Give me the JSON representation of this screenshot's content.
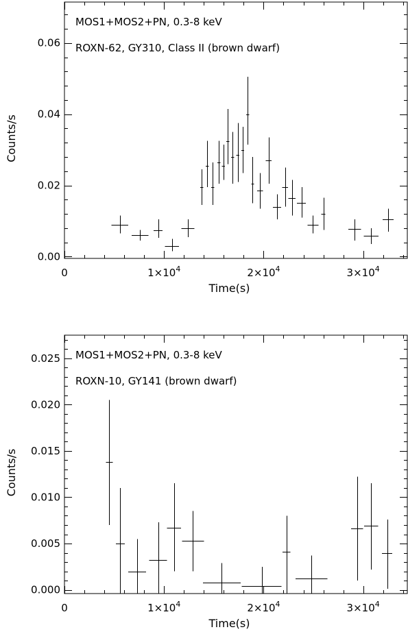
{
  "chart_data": [
    {
      "type": "scatter",
      "annotations": [
        "MOS1+MOS2+PN, 0.3-8 keV",
        "ROXN-62, GY310, Class II (brown dwarf)"
      ],
      "xlabel": "Time(s)",
      "ylabel": "Counts/s",
      "xlim": [
        0,
        34500
      ],
      "ylim": [
        -0.0005,
        0.0715
      ],
      "xticks": [
        {
          "value": 0,
          "mant": "0",
          "exp": ""
        },
        {
          "value": 10000,
          "mant": "1×10",
          "exp": "4"
        },
        {
          "value": 20000,
          "mant": "2×10",
          "exp": "4"
        },
        {
          "value": 30000,
          "mant": "3×10",
          "exp": "4"
        }
      ],
      "yticks": [
        {
          "value": 0.0,
          "label": "0.00"
        },
        {
          "value": 0.02,
          "label": "0.02"
        },
        {
          "value": 0.04,
          "label": "0.04"
        },
        {
          "value": 0.06,
          "label": "0.06"
        }
      ],
      "points": [
        {
          "x": 5550,
          "xerr": 850,
          "y": 0.009,
          "ylo": 0.0065,
          "yhi": 0.0115
        },
        {
          "x": 7600,
          "xerr": 850,
          "y": 0.006,
          "ylo": 0.0045,
          "yhi": 0.0075
        },
        {
          "x": 9400,
          "xerr": 450,
          "y": 0.0073,
          "ylo": 0.0053,
          "yhi": 0.0105
        },
        {
          "x": 10800,
          "xerr": 700,
          "y": 0.003,
          "ylo": 0.0015,
          "yhi": 0.005
        },
        {
          "x": 12400,
          "xerr": 650,
          "y": 0.008,
          "ylo": 0.0055,
          "yhi": 0.0105
        },
        {
          "x": 13800,
          "xerr": 150,
          "y": 0.0195,
          "ylo": 0.0145,
          "yhi": 0.0245
        },
        {
          "x": 14350,
          "xerr": 150,
          "y": 0.0255,
          "ylo": 0.0195,
          "yhi": 0.0325
        },
        {
          "x": 14900,
          "xerr": 150,
          "y": 0.0195,
          "ylo": 0.0145,
          "yhi": 0.0265
        },
        {
          "x": 15500,
          "xerr": 150,
          "y": 0.0265,
          "ylo": 0.0205,
          "yhi": 0.0325
        },
        {
          "x": 15950,
          "xerr": 150,
          "y": 0.0255,
          "ylo": 0.0215,
          "yhi": 0.0315
        },
        {
          "x": 16400,
          "xerr": 150,
          "y": 0.0325,
          "ylo": 0.026,
          "yhi": 0.0415
        },
        {
          "x": 16900,
          "xerr": 150,
          "y": 0.028,
          "ylo": 0.0205,
          "yhi": 0.035
        },
        {
          "x": 17400,
          "xerr": 150,
          "y": 0.0285,
          "ylo": 0.021,
          "yhi": 0.0375
        },
        {
          "x": 17900,
          "xerr": 150,
          "y": 0.03,
          "ylo": 0.0235,
          "yhi": 0.0365
        },
        {
          "x": 18400,
          "xerr": 150,
          "y": 0.04,
          "ylo": 0.0315,
          "yhi": 0.0505
        },
        {
          "x": 18900,
          "xerr": 150,
          "y": 0.0205,
          "ylo": 0.015,
          "yhi": 0.028
        },
        {
          "x": 19650,
          "xerr": 300,
          "y": 0.0185,
          "ylo": 0.0135,
          "yhi": 0.0235
        },
        {
          "x": 20500,
          "xerr": 300,
          "y": 0.027,
          "ylo": 0.0205,
          "yhi": 0.0335
        },
        {
          "x": 21350,
          "xerr": 400,
          "y": 0.014,
          "ylo": 0.0105,
          "yhi": 0.0175
        },
        {
          "x": 22150,
          "xerr": 300,
          "y": 0.0195,
          "ylo": 0.014,
          "yhi": 0.025
        },
        {
          "x": 22850,
          "xerr": 350,
          "y": 0.0165,
          "ylo": 0.0115,
          "yhi": 0.0215
        },
        {
          "x": 23800,
          "xerr": 450,
          "y": 0.015,
          "ylo": 0.011,
          "yhi": 0.0195
        },
        {
          "x": 24950,
          "xerr": 550,
          "y": 0.009,
          "ylo": 0.0065,
          "yhi": 0.0115
        },
        {
          "x": 26000,
          "xerr": 200,
          "y": 0.012,
          "ylo": 0.0075,
          "yhi": 0.0165
        },
        {
          "x": 29150,
          "xerr": 650,
          "y": 0.0078,
          "ylo": 0.0045,
          "yhi": 0.0105
        },
        {
          "x": 30800,
          "xerr": 750,
          "y": 0.0058,
          "ylo": 0.0035,
          "yhi": 0.008
        },
        {
          "x": 32500,
          "xerr": 550,
          "y": 0.0105,
          "ylo": 0.007,
          "yhi": 0.0135
        }
      ]
    },
    {
      "type": "scatter",
      "annotations": [
        "MOS1+MOS2+PN, 0.3-8 keV",
        "ROXN-10, GY141 (brown dwarf)"
      ],
      "xlabel": "Time(s)",
      "ylabel": "Counts/s",
      "xlim": [
        0,
        34500
      ],
      "ylim": [
        -0.0004,
        0.0275
      ],
      "xticks": [
        {
          "value": 0,
          "mant": "0",
          "exp": ""
        },
        {
          "value": 10000,
          "mant": "1×10",
          "exp": "4"
        },
        {
          "value": 20000,
          "mant": "2×10",
          "exp": "4"
        },
        {
          "value": 30000,
          "mant": "3×10",
          "exp": "4"
        }
      ],
      "yticks": [
        {
          "value": 0.0,
          "label": "0.000"
        },
        {
          "value": 0.005,
          "label": "0.005"
        },
        {
          "value": 0.01,
          "label": "0.010"
        },
        {
          "value": 0.015,
          "label": "0.015"
        },
        {
          "value": 0.02,
          "label": "0.020"
        },
        {
          "value": 0.025,
          "label": "0.025"
        }
      ],
      "points": [
        {
          "x": 4500,
          "xerr": 350,
          "y": 0.0138,
          "ylo": 0.007,
          "yhi": 0.0205
        },
        {
          "x": 5600,
          "xerr": 450,
          "y": 0.005,
          "ylo": -0.0004,
          "yhi": 0.011
        },
        {
          "x": 7300,
          "xerr": 900,
          "y": 0.002,
          "ylo": -0.0004,
          "yhi": 0.0055
        },
        {
          "x": 9400,
          "xerr": 900,
          "y": 0.0032,
          "ylo": -0.0004,
          "yhi": 0.0073
        },
        {
          "x": 11000,
          "xerr": 700,
          "y": 0.0067,
          "ylo": 0.002,
          "yhi": 0.0115
        },
        {
          "x": 12900,
          "xerr": 1100,
          "y": 0.0053,
          "ylo": 0.002,
          "yhi": 0.0085
        },
        {
          "x": 15800,
          "xerr": 1900,
          "y": 0.0008,
          "ylo": -0.0004,
          "yhi": 0.0029
        },
        {
          "x": 19800,
          "xerr": 2000,
          "y": 0.0004,
          "ylo": -0.0004,
          "yhi": 0.0025
        },
        {
          "x": 22300,
          "xerr": 400,
          "y": 0.0041,
          "ylo": -0.0004,
          "yhi": 0.008
        },
        {
          "x": 24800,
          "xerr": 1600,
          "y": 0.0012,
          "ylo": -0.0004,
          "yhi": 0.0037
        },
        {
          "x": 29400,
          "xerr": 600,
          "y": 0.0066,
          "ylo": 0.001,
          "yhi": 0.0122
        },
        {
          "x": 30800,
          "xerr": 700,
          "y": 0.0069,
          "ylo": 0.0022,
          "yhi": 0.0115
        },
        {
          "x": 32400,
          "xerr": 500,
          "y": 0.004,
          "ylo": 0.0001,
          "yhi": 0.0076
        }
      ]
    }
  ]
}
